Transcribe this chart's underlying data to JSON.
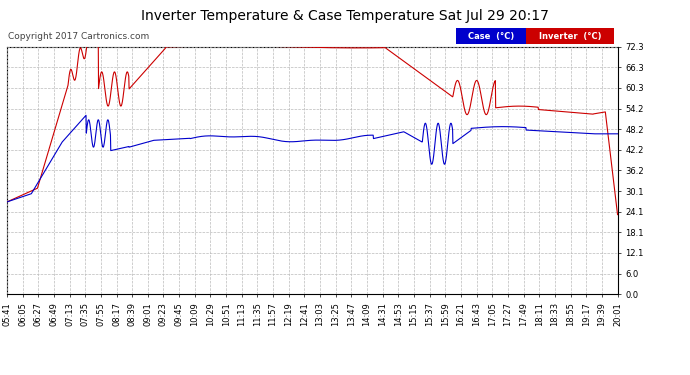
{
  "title": "Inverter Temperature & Case Temperature Sat Jul 29 20:17",
  "copyright": "Copyright 2017 Cartronics.com",
  "legend_case_label": "Case  (°C)",
  "legend_inv_label": "Inverter  (°C)",
  "yticks": [
    0.0,
    6.0,
    12.1,
    18.1,
    24.1,
    30.1,
    36.2,
    42.2,
    48.2,
    54.2,
    60.3,
    66.3,
    72.3
  ],
  "ylim": [
    0.0,
    72.3
  ],
  "background_color": "#ffffff",
  "plot_bg_color": "#ffffff",
  "grid_color": "#bbbbbb",
  "case_color": "#0000cc",
  "inv_color": "#cc0000",
  "title_fontsize": 10,
  "copyright_fontsize": 6.5,
  "tick_fontsize": 6,
  "xtick_labels": [
    "05:41",
    "06:05",
    "06:27",
    "06:49",
    "07:13",
    "07:35",
    "07:55",
    "08:17",
    "08:39",
    "09:01",
    "09:23",
    "09:45",
    "10:09",
    "10:29",
    "10:51",
    "11:13",
    "11:35",
    "11:57",
    "12:19",
    "12:41",
    "13:03",
    "13:25",
    "13:47",
    "14:09",
    "14:31",
    "14:53",
    "15:15",
    "15:37",
    "15:59",
    "16:21",
    "16:43",
    "17:05",
    "17:27",
    "17:49",
    "18:11",
    "18:33",
    "18:55",
    "19:17",
    "19:39",
    "20:01"
  ]
}
